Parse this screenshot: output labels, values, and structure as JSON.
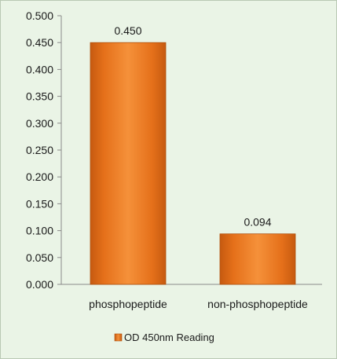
{
  "chart_data": {
    "type": "bar",
    "categories": [
      "phosphopeptide",
      "non-phosphopeptide"
    ],
    "series": [
      {
        "name": "OD 450nm Reading",
        "values": [
          0.45,
          0.094
        ]
      }
    ],
    "data_labels": [
      "0.450",
      "0.094"
    ],
    "yticks": [
      "0.000",
      "0.050",
      "0.100",
      "0.150",
      "0.200",
      "0.250",
      "0.300",
      "0.350",
      "0.400",
      "0.450",
      "0.500"
    ],
    "ylim": [
      0,
      0.5
    ],
    "grid": false,
    "legend_position": "bottom",
    "bar_color": "#ee7a1c",
    "background_color": "#eaf4e6"
  }
}
